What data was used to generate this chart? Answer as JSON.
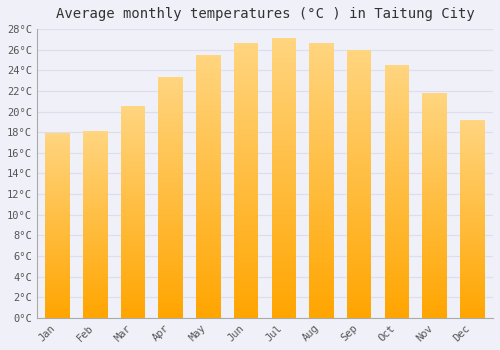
{
  "title": "Average monthly temperatures (°C ) in Taitung City",
  "months": [
    "Jan",
    "Feb",
    "Mar",
    "Apr",
    "May",
    "Jun",
    "Jul",
    "Aug",
    "Sep",
    "Oct",
    "Nov",
    "Dec"
  ],
  "values": [
    17.9,
    18.1,
    20.5,
    23.4,
    25.5,
    26.6,
    27.1,
    26.6,
    26.0,
    24.5,
    21.8,
    19.2
  ],
  "bar_color_bottom": "#FFA500",
  "bar_color_top": "#FFD580",
  "background_color": "#F0F0F8",
  "plot_bg_color": "#F0F0F8",
  "grid_color": "#DDDDEE",
  "tick_label_color": "#555555",
  "title_color": "#333333",
  "ylim": [
    0,
    28
  ],
  "ytick_step": 2,
  "title_fontsize": 10,
  "tick_fontsize": 7.5,
  "font_family": "monospace"
}
